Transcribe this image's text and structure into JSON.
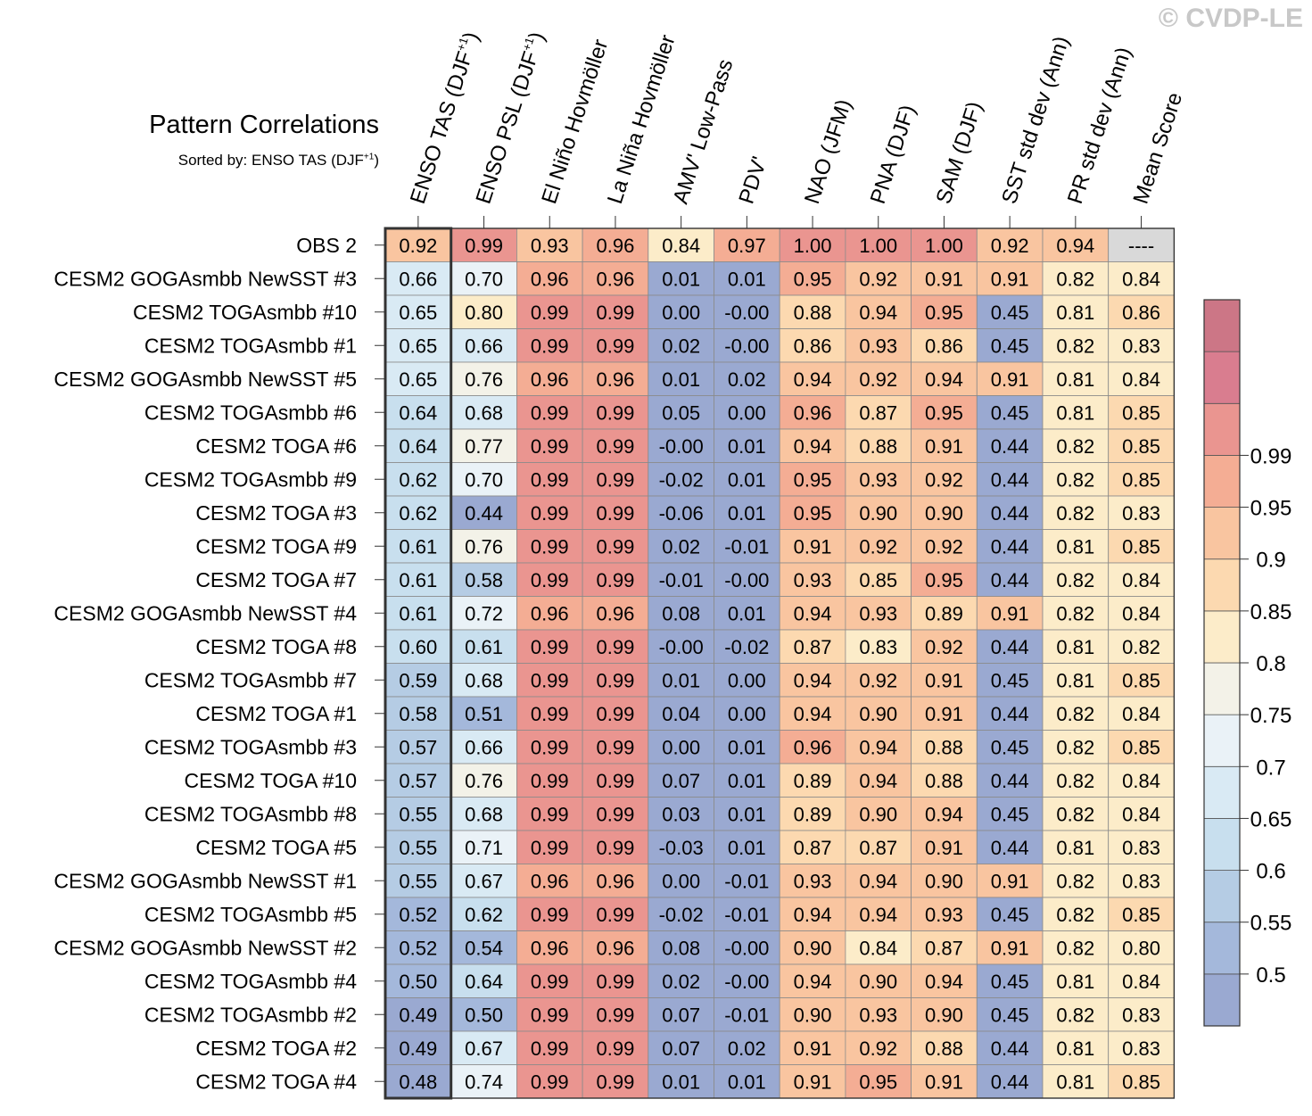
{
  "watermark": "© CVDP-LE",
  "title": "Pattern Correlations",
  "subtitle_prefix": "Sorted by: ENSO TAS (DJF",
  "subtitle_sup": "+1",
  "subtitle_suffix": ")",
  "colors": {
    "scale": [
      "#9aa9d1",
      "#a4b8db",
      "#b5cce4",
      "#c8dfee",
      "#d9eaf4",
      "#eaf2f7",
      "#f3f2e8",
      "#fcecc9",
      "#fcd9b0",
      "#f9c5a0",
      "#f4ad94",
      "#ea9590",
      "#d97d8f",
      "#cc7686"
    ],
    "missing": "#d9d9d9"
  },
  "chart_data": {
    "type": "heatmap",
    "title": "Pattern Correlations",
    "subtitle": "Sorted by: ENSO TAS (DJF+1)",
    "columns": [
      {
        "label": "ENSO TAS (DJF",
        "sup": "+1",
        "tail": ")"
      },
      {
        "label": "ENSO PSL (DJF",
        "sup": "+1",
        "tail": ")"
      },
      {
        "label": "El Niño Hovmöller"
      },
      {
        "label": "La Niña Hovmöller"
      },
      {
        "label": "AMV' Low-Pass"
      },
      {
        "label": "PDV'"
      },
      {
        "label": "NAO (JFM)"
      },
      {
        "label": "PNA (DJF)"
      },
      {
        "label": "SAM (DJF)"
      },
      {
        "label": "SST std dev (Ann)"
      },
      {
        "label": "PR std dev (Ann)"
      },
      {
        "label": "Mean Score"
      }
    ],
    "rows": [
      "OBS 2",
      "CESM2 GOGAsmbb NewSST #3",
      "CESM2 TOGAsmbb #10",
      "CESM2 TOGAsmbb #1",
      "CESM2 GOGAsmbb NewSST #5",
      "CESM2 TOGAsmbb #6",
      "CESM2 TOGA #6",
      "CESM2 TOGAsmbb #9",
      "CESM2 TOGA #3",
      "CESM2 TOGA #9",
      "CESM2 TOGA #7",
      "CESM2 GOGAsmbb NewSST #4",
      "CESM2 TOGA #8",
      "CESM2 TOGAsmbb #7",
      "CESM2 TOGA #1",
      "CESM2 TOGAsmbb #3",
      "CESM2 TOGA #10",
      "CESM2 TOGAsmbb #8",
      "CESM2 TOGA #5",
      "CESM2 GOGAsmbb NewSST #1",
      "CESM2 TOGAsmbb #5",
      "CESM2 GOGAsmbb NewSST #2",
      "CESM2 TOGAsmbb #4",
      "CESM2 TOGAsmbb #2",
      "CESM2 TOGA #2",
      "CESM2 TOGA #4"
    ],
    "values": [
      [
        "0.92",
        "0.99",
        "0.93",
        "0.96",
        "0.84",
        "0.97",
        "1.00",
        "1.00",
        "1.00",
        "0.92",
        "0.94",
        "----"
      ],
      [
        "0.66",
        "0.70",
        "0.96",
        "0.96",
        "0.01",
        "0.01",
        "0.95",
        "0.92",
        "0.91",
        "0.91",
        "0.82",
        "0.84"
      ],
      [
        "0.65",
        "0.80",
        "0.99",
        "0.99",
        "0.00",
        "-0.00",
        "0.88",
        "0.94",
        "0.95",
        "0.45",
        "0.81",
        "0.86"
      ],
      [
        "0.65",
        "0.66",
        "0.99",
        "0.99",
        "0.02",
        "-0.00",
        "0.86",
        "0.93",
        "0.86",
        "0.45",
        "0.82",
        "0.83"
      ],
      [
        "0.65",
        "0.76",
        "0.96",
        "0.96",
        "0.01",
        "0.02",
        "0.94",
        "0.92",
        "0.94",
        "0.91",
        "0.81",
        "0.84"
      ],
      [
        "0.64",
        "0.68",
        "0.99",
        "0.99",
        "0.05",
        "0.00",
        "0.96",
        "0.87",
        "0.95",
        "0.45",
        "0.81",
        "0.85"
      ],
      [
        "0.64",
        "0.77",
        "0.99",
        "0.99",
        "-0.00",
        "0.01",
        "0.94",
        "0.88",
        "0.91",
        "0.44",
        "0.82",
        "0.85"
      ],
      [
        "0.62",
        "0.70",
        "0.99",
        "0.99",
        "-0.02",
        "0.01",
        "0.95",
        "0.93",
        "0.92",
        "0.44",
        "0.82",
        "0.85"
      ],
      [
        "0.62",
        "0.44",
        "0.99",
        "0.99",
        "-0.06",
        "0.01",
        "0.95",
        "0.90",
        "0.90",
        "0.44",
        "0.82",
        "0.83"
      ],
      [
        "0.61",
        "0.76",
        "0.99",
        "0.99",
        "0.02",
        "-0.01",
        "0.91",
        "0.92",
        "0.92",
        "0.44",
        "0.81",
        "0.85"
      ],
      [
        "0.61",
        "0.58",
        "0.99",
        "0.99",
        "-0.01",
        "-0.00",
        "0.93",
        "0.85",
        "0.95",
        "0.44",
        "0.82",
        "0.84"
      ],
      [
        "0.61",
        "0.72",
        "0.96",
        "0.96",
        "0.08",
        "0.01",
        "0.94",
        "0.93",
        "0.89",
        "0.91",
        "0.82",
        "0.84"
      ],
      [
        "0.60",
        "0.61",
        "0.99",
        "0.99",
        "-0.00",
        "-0.02",
        "0.87",
        "0.83",
        "0.92",
        "0.44",
        "0.81",
        "0.82"
      ],
      [
        "0.59",
        "0.68",
        "0.99",
        "0.99",
        "0.01",
        "0.00",
        "0.94",
        "0.92",
        "0.91",
        "0.45",
        "0.81",
        "0.85"
      ],
      [
        "0.58",
        "0.51",
        "0.99",
        "0.99",
        "0.04",
        "0.00",
        "0.94",
        "0.90",
        "0.91",
        "0.44",
        "0.82",
        "0.84"
      ],
      [
        "0.57",
        "0.66",
        "0.99",
        "0.99",
        "0.00",
        "0.01",
        "0.96",
        "0.94",
        "0.88",
        "0.45",
        "0.82",
        "0.85"
      ],
      [
        "0.57",
        "0.76",
        "0.99",
        "0.99",
        "0.07",
        "0.01",
        "0.89",
        "0.94",
        "0.88",
        "0.44",
        "0.82",
        "0.84"
      ],
      [
        "0.55",
        "0.68",
        "0.99",
        "0.99",
        "0.03",
        "0.01",
        "0.89",
        "0.90",
        "0.94",
        "0.45",
        "0.82",
        "0.84"
      ],
      [
        "0.55",
        "0.71",
        "0.99",
        "0.99",
        "-0.03",
        "0.01",
        "0.87",
        "0.87",
        "0.91",
        "0.44",
        "0.81",
        "0.83"
      ],
      [
        "0.55",
        "0.67",
        "0.96",
        "0.96",
        "0.00",
        "-0.01",
        "0.93",
        "0.94",
        "0.90",
        "0.91",
        "0.82",
        "0.83"
      ],
      [
        "0.52",
        "0.62",
        "0.99",
        "0.99",
        "-0.02",
        "-0.01",
        "0.94",
        "0.94",
        "0.93",
        "0.45",
        "0.82",
        "0.85"
      ],
      [
        "0.52",
        "0.54",
        "0.96",
        "0.96",
        "0.08",
        "-0.00",
        "0.90",
        "0.84",
        "0.87",
        "0.91",
        "0.82",
        "0.80"
      ],
      [
        "0.50",
        "0.64",
        "0.99",
        "0.99",
        "0.02",
        "-0.00",
        "0.94",
        "0.90",
        "0.94",
        "0.45",
        "0.81",
        "0.84"
      ],
      [
        "0.49",
        "0.50",
        "0.99",
        "0.99",
        "0.07",
        "-0.01",
        "0.90",
        "0.93",
        "0.90",
        "0.45",
        "0.82",
        "0.83"
      ],
      [
        "0.49",
        "0.67",
        "0.99",
        "0.99",
        "0.07",
        "0.02",
        "0.91",
        "0.92",
        "0.88",
        "0.44",
        "0.81",
        "0.83"
      ],
      [
        "0.48",
        "0.74",
        "0.99",
        "0.99",
        "0.01",
        "0.01",
        "0.91",
        "0.95",
        "0.91",
        "0.44",
        "0.81",
        "0.85"
      ]
    ],
    "highlight_column": 0,
    "colorbar": {
      "levels": [
        0.5,
        0.55,
        0.6,
        0.65,
        0.7,
        0.75,
        0.8,
        0.85,
        0.9,
        0.95,
        0.99
      ],
      "tick_labels": [
        "0.5",
        "0.55",
        "0.6",
        "0.65",
        "0.7",
        "0.75",
        "0.8",
        "0.85",
        "0.9",
        "0.95",
        "0.99"
      ]
    }
  }
}
